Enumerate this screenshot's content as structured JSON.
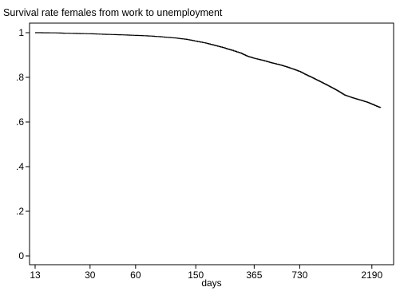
{
  "chart_data": {
    "type": "line",
    "title": "Survival rate females from work to unemployment",
    "xlabel": "days",
    "ylabel": "",
    "x_scale": "log",
    "xlim": [
      13,
      2700
    ],
    "ylim": [
      0,
      1
    ],
    "x_ticks": [
      13,
      30,
      60,
      150,
      365,
      730,
      2190
    ],
    "x_tick_labels": [
      "13",
      "30",
      "60",
      "150",
      "365",
      "730",
      "2190"
    ],
    "y_ticks": [
      0,
      0.2,
      0.4,
      0.6,
      0.8,
      1
    ],
    "y_tick_labels": [
      "0",
      ".2",
      ".4",
      ".6",
      ".8",
      "1"
    ],
    "grid": false,
    "legend": "none",
    "line_color": "#000000",
    "series": [
      {
        "x": [
          13,
          18,
          22,
          30,
          40,
          50,
          60,
          75,
          90,
          110,
          130,
          150,
          175,
          200,
          230,
          260,
          300,
          330,
          365,
          420,
          480,
          550,
          620,
          680,
          730,
          800,
          880,
          960,
          1050,
          1150,
          1250,
          1350,
          1450,
          1600,
          1750,
          1900,
          2050,
          2190,
          2350,
          2500
        ],
        "y": [
          1.0,
          0.999,
          0.997,
          0.995,
          0.992,
          0.99,
          0.988,
          0.985,
          0.981,
          0.976,
          0.97,
          0.962,
          0.953,
          0.943,
          0.932,
          0.921,
          0.907,
          0.894,
          0.885,
          0.875,
          0.864,
          0.854,
          0.843,
          0.834,
          0.826,
          0.812,
          0.799,
          0.786,
          0.773,
          0.759,
          0.746,
          0.733,
          0.72,
          0.71,
          0.702,
          0.695,
          0.688,
          0.68,
          0.671,
          0.664
        ]
      }
    ]
  }
}
